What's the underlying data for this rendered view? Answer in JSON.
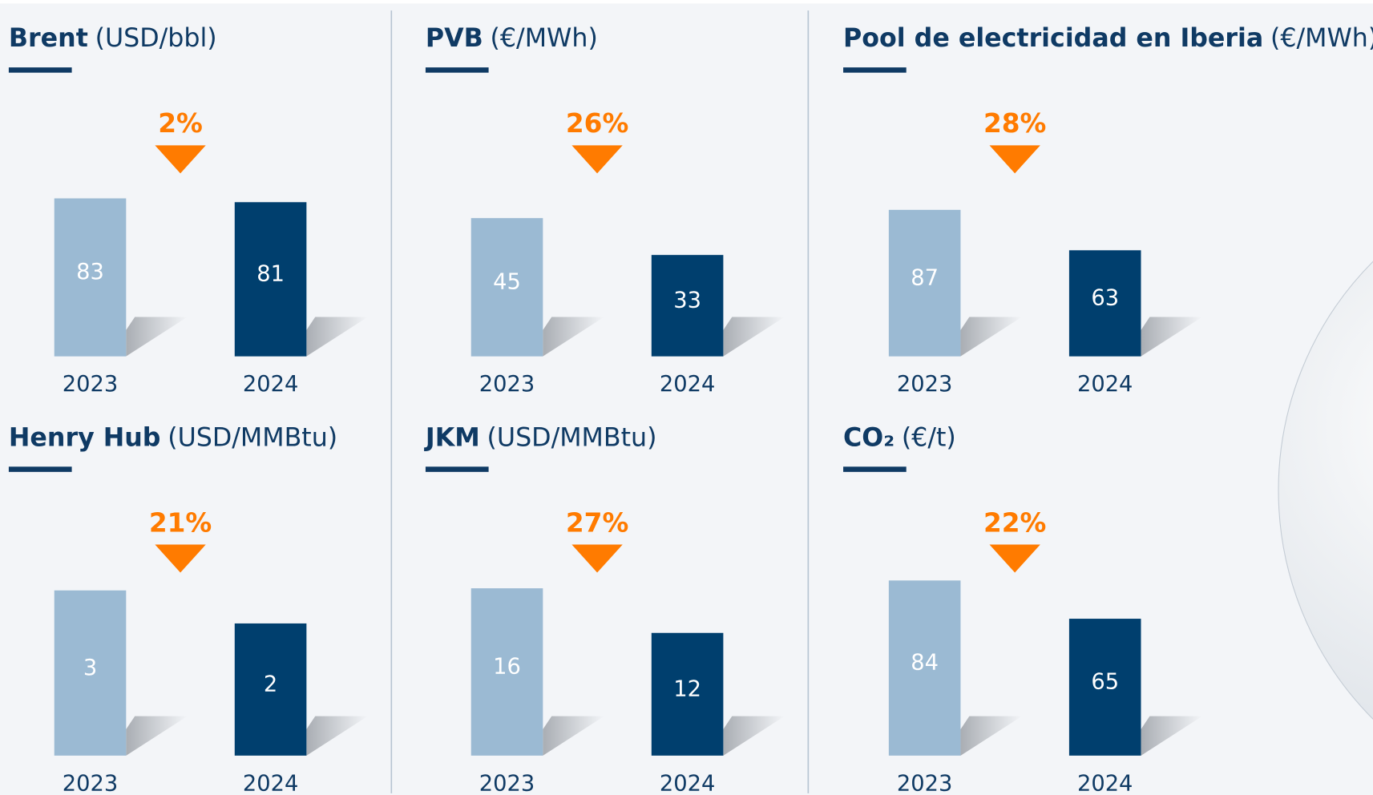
{
  "chart_data": [
    {
      "type": "bar",
      "title": "Brent",
      "unit": "(USD/bbl)",
      "annotation": "2%",
      "categories": [
        "2023",
        "2024"
      ],
      "values": [
        83,
        81
      ],
      "colors": [
        "#9bbad3",
        "#003f6e"
      ],
      "ylim": [
        0,
        92
      ]
    },
    {
      "type": "bar",
      "title": "PVB",
      "unit": "(€/MWh)",
      "annotation": "26%",
      "categories": [
        "2023",
        "2024"
      ],
      "values": [
        45,
        33
      ],
      "colors": [
        "#9bbad3",
        "#003f6e"
      ],
      "ylim": [
        0,
        57
      ]
    },
    {
      "type": "bar",
      "title": "Pool de electricidad en Iberia",
      "unit": "(€/MWh)",
      "annotation": "28%",
      "categories": [
        "2023",
        "2024"
      ],
      "values": [
        87,
        63
      ],
      "colors": [
        "#9bbad3",
        "#003f6e"
      ],
      "ylim": [
        0,
        104
      ]
    },
    {
      "type": "bar",
      "title": "Henry Hub",
      "unit": "(USD/MMBtu)",
      "annotation": "21%",
      "categories": [
        "2023",
        "2024"
      ],
      "values": [
        3,
        2
      ],
      "colors": [
        "#9bbad3",
        "#003f6e"
      ],
      "ylim": [
        -2,
        3.3
      ]
    },
    {
      "type": "bar",
      "title": "JKM",
      "unit": "(USD/MMBtu)",
      "annotation": "27%",
      "categories": [
        "2023",
        "2024"
      ],
      "values": [
        16,
        12
      ],
      "colors": [
        "#9bbad3",
        "#003f6e"
      ],
      "ylim": [
        1,
        16.7
      ]
    },
    {
      "type": "bar",
      "title": "CO₂",
      "unit": "(€/t)",
      "annotation": "22%",
      "categories": [
        "2023",
        "2024"
      ],
      "values": [
        84,
        65
      ],
      "colors": [
        "#9bbad3",
        "#003f6e"
      ],
      "ylim": [
        -3,
        84
      ]
    }
  ]
}
